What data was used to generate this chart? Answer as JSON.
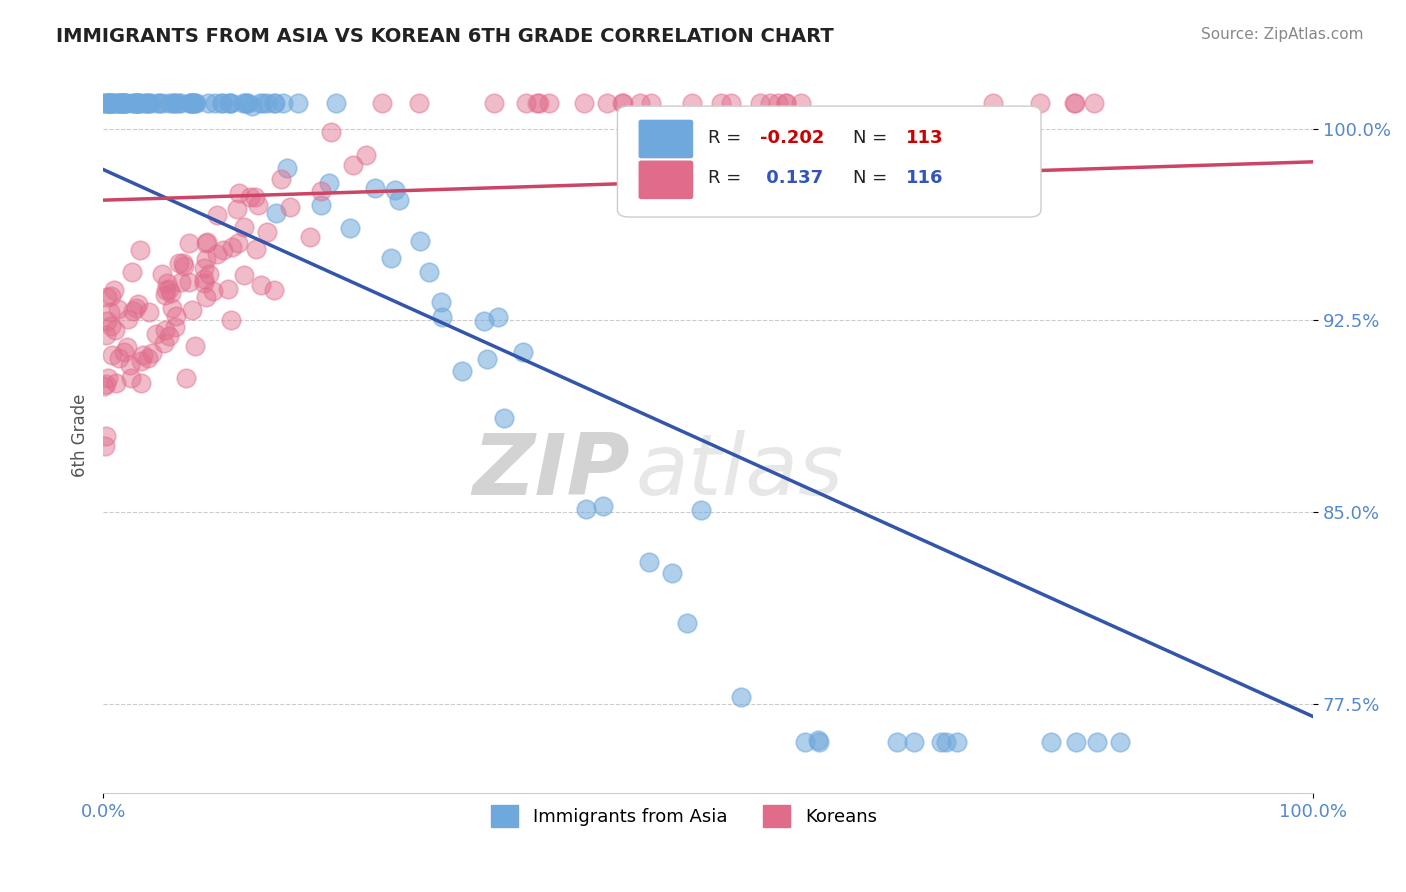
{
  "title": "IMMIGRANTS FROM ASIA VS KOREAN 6TH GRADE CORRELATION CHART",
  "source_text": "Source: ZipAtlas.com",
  "xlabel": "",
  "ylabel": "6th Grade",
  "xlim": [
    0.0,
    1.0
  ],
  "ylim": [
    0.74,
    1.02
  ],
  "yticks": [
    0.775,
    0.85,
    0.925,
    1.0
  ],
  "ytick_labels": [
    "77.5%",
    "85.0%",
    "92.5%",
    "100.0%"
  ],
  "xticks": [
    0.0,
    1.0
  ],
  "xtick_labels": [
    "0.0%",
    "100.0%"
  ],
  "blue_R": -0.202,
  "blue_N": 113,
  "pink_R": 0.137,
  "pink_N": 116,
  "blue_color": "#6fa8dc",
  "pink_color": "#e06c8a",
  "blue_line_color": "#3355aa",
  "pink_line_color": "#cc4466",
  "legend_label_blue": "Immigrants from Asia",
  "legend_label_pink": "Koreans",
  "watermark_zip": "ZIP",
  "watermark_atlas": "atlas",
  "title_fontsize": 14,
  "axis_label_color": "#5588cc",
  "background_color": "#ffffff",
  "grid_color": "#cccccc"
}
